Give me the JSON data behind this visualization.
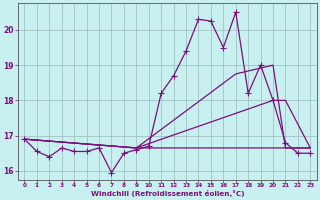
{
  "xlabel": "Windchill (Refroidissement éolien,°C)",
  "x_values": [
    0,
    1,
    2,
    3,
    4,
    5,
    6,
    7,
    8,
    9,
    10,
    11,
    12,
    13,
    14,
    15,
    16,
    17,
    18,
    19,
    20,
    21,
    22,
    23
  ],
  "line1": [
    16.9,
    16.55,
    16.4,
    16.65,
    16.55,
    16.55,
    16.65,
    15.95,
    16.5,
    16.6,
    16.7,
    18.2,
    18.7,
    19.4,
    20.3,
    20.25,
    19.5,
    20.5,
    18.2,
    19.0,
    18.0,
    16.8,
    16.5,
    16.5
  ],
  "line2_x": [
    0,
    9,
    23
  ],
  "line2_y": [
    16.9,
    16.65,
    16.65
  ],
  "line3_x": [
    0,
    9,
    20,
    21,
    23
  ],
  "line3_y": [
    16.9,
    16.65,
    18.0,
    18.0,
    16.65
  ],
  "line4_x": [
    0,
    9,
    17,
    20,
    21,
    23
  ],
  "line4_y": [
    16.9,
    16.65,
    18.75,
    19.0,
    16.65,
    16.65
  ],
  "line_color": "#7b0f7b",
  "marker": "+",
  "bg_color": "#c8f0f0",
  "grid_color": "#9bbaba",
  "ylim": [
    15.75,
    20.75
  ],
  "yticks": [
    16,
    17,
    18,
    19,
    20
  ],
  "xlim": [
    -0.5,
    23.5
  ]
}
